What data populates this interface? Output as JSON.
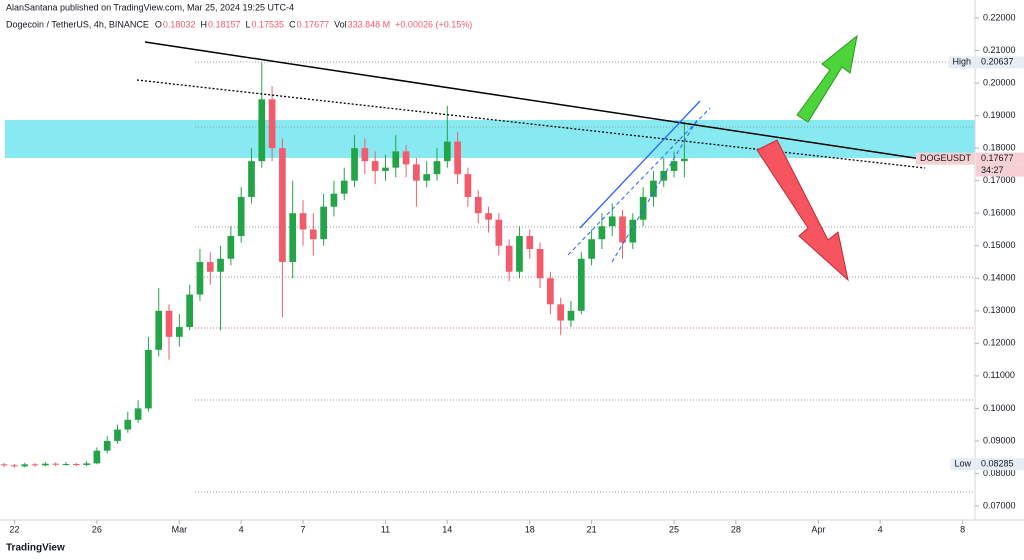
{
  "header": {
    "published": "AlanSantana published on TradingView.com, Mar 25, 2024 19:25 UTC-4",
    "footer": "TradingView"
  },
  "legend": {
    "symbol": "Dogecoin / TetherUS, 4h, BINANCE",
    "items": [
      {
        "label": "O",
        "value": "0.18032"
      },
      {
        "label": "H",
        "value": "0.18157"
      },
      {
        "label": "L",
        "value": "0.17535"
      },
      {
        "label": "C",
        "value": "0.17677"
      },
      {
        "label": "Vol",
        "value": "333.848 M"
      }
    ],
    "change": "+0.00026 (+0.15%)"
  },
  "chart_data": {
    "type": "candlestick",
    "up_color": "#22a447",
    "down_color": "#f15b6c",
    "x": [
      -0.5,
      0,
      0.5,
      1,
      1.5,
      2,
      2.5,
      3,
      3.5,
      4,
      4.5,
      5,
      5.5,
      6,
      6.5,
      7,
      7.5,
      8,
      8.5,
      9,
      9.5,
      10,
      10.5,
      11,
      11.5,
      12,
      12.5,
      13,
      13.5,
      14,
      14.5,
      15,
      15.5,
      16,
      16.5,
      17,
      17.5,
      18,
      18.5,
      19,
      19.5,
      20,
      20.5,
      21,
      21.5,
      22,
      22.5,
      23,
      23.5,
      24,
      24.5,
      25,
      25.5,
      26,
      26.5,
      27,
      27.5,
      28,
      28.5,
      29,
      29.5,
      30,
      30.5,
      31,
      31.5,
      32,
      32.5
    ],
    "open": [
      0.0828,
      0.0825,
      0.0822,
      0.0828,
      0.0825,
      0.083,
      0.0827,
      0.0829,
      0.0826,
      0.0831,
      0.087,
      0.09,
      0.0935,
      0.0965,
      0.1,
      0.118,
      0.13,
      0.122,
      0.125,
      0.135,
      0.145,
      0.142,
      0.146,
      0.153,
      0.165,
      0.176,
      0.195,
      0.18,
      0.145,
      0.16,
      0.155,
      0.152,
      0.162,
      0.166,
      0.17,
      0.18,
      0.176,
      0.173,
      0.174,
      0.179,
      0.175,
      0.17,
      0.172,
      0.176,
      0.182,
      0.172,
      0.165,
      0.16,
      0.158,
      0.15,
      0.142,
      0.153,
      0.149,
      0.14,
      0.132,
      0.127,
      0.13,
      0.146,
      0.152,
      0.156,
      0.159,
      0.151,
      0.158,
      0.165,
      0.17,
      0.173,
      0.176
    ],
    "high": [
      0.0832,
      0.0829,
      0.0833,
      0.0832,
      0.0836,
      0.0834,
      0.0835,
      0.0833,
      0.0838,
      0.088,
      0.0915,
      0.095,
      0.099,
      0.1025,
      0.122,
      0.137,
      0.132,
      0.129,
      0.138,
      0.149,
      0.148,
      0.15,
      0.156,
      0.168,
      0.18,
      0.2064,
      0.199,
      0.183,
      0.17,
      0.164,
      0.16,
      0.166,
      0.17,
      0.174,
      0.184,
      0.183,
      0.179,
      0.178,
      0.184,
      0.181,
      0.177,
      0.176,
      0.18,
      0.193,
      0.185,
      0.174,
      0.167,
      0.162,
      0.16,
      0.152,
      0.156,
      0.155,
      0.151,
      0.142,
      0.134,
      0.133,
      0.148,
      0.155,
      0.16,
      0.163,
      0.161,
      0.16,
      0.168,
      0.173,
      0.177,
      0.179,
      0.188
    ],
    "low": [
      0.082,
      0.0818,
      0.0819,
      0.0821,
      0.0822,
      0.0823,
      0.0824,
      0.0822,
      0.0823,
      0.0828,
      0.0862,
      0.0892,
      0.0925,
      0.0955,
      0.099,
      0.116,
      0.115,
      0.119,
      0.124,
      0.133,
      0.138,
      0.124,
      0.144,
      0.151,
      0.163,
      0.174,
      0.176,
      0.128,
      0.14,
      0.15,
      0.147,
      0.15,
      0.159,
      0.164,
      0.168,
      0.172,
      0.169,
      0.17,
      0.171,
      0.171,
      0.162,
      0.168,
      0.17,
      0.174,
      0.169,
      0.162,
      0.157,
      0.154,
      0.147,
      0.139,
      0.14,
      0.146,
      0.137,
      0.129,
      0.1225,
      0.125,
      0.129,
      0.144,
      0.149,
      0.153,
      0.146,
      0.149,
      0.156,
      0.162,
      0.168,
      0.171,
      0.171
    ],
    "close": [
      0.0825,
      0.0822,
      0.0828,
      0.0825,
      0.083,
      0.0827,
      0.0829,
      0.0826,
      0.0831,
      0.087,
      0.09,
      0.0935,
      0.0965,
      0.1,
      0.118,
      0.13,
      0.122,
      0.125,
      0.135,
      0.145,
      0.142,
      0.146,
      0.153,
      0.165,
      0.176,
      0.195,
      0.18,
      0.145,
      0.16,
      0.155,
      0.152,
      0.162,
      0.166,
      0.17,
      0.18,
      0.176,
      0.173,
      0.174,
      0.179,
      0.175,
      0.17,
      0.172,
      0.176,
      0.182,
      0.172,
      0.165,
      0.16,
      0.158,
      0.15,
      0.142,
      0.153,
      0.149,
      0.14,
      0.132,
      0.127,
      0.13,
      0.146,
      0.152,
      0.156,
      0.159,
      0.151,
      0.158,
      0.165,
      0.17,
      0.173,
      0.176,
      0.17677
    ],
    "xlim": [
      -0.7,
      46.6
    ],
    "xticks": [
      {
        "value": 0,
        "label": "22"
      },
      {
        "value": 4,
        "label": "26"
      },
      {
        "value": 8,
        "label": "Mar"
      },
      {
        "value": 11,
        "label": "4"
      },
      {
        "value": 14,
        "label": "7"
      },
      {
        "value": 18,
        "label": "11"
      },
      {
        "value": 21,
        "label": "14"
      },
      {
        "value": 25,
        "label": "18"
      },
      {
        "value": 28,
        "label": "21"
      },
      {
        "value": 32,
        "label": "25"
      },
      {
        "value": 35,
        "label": "28"
      },
      {
        "value": 39,
        "label": "Apr"
      },
      {
        "value": 42,
        "label": "4"
      },
      {
        "value": 46,
        "label": "8"
      }
    ],
    "ylim": [
      0.07,
      0.22
    ],
    "yticks": [
      {
        "value": 0.07,
        "label": "0.07000"
      },
      {
        "value": 0.08,
        "label": "0.08000"
      },
      {
        "value": 0.09,
        "label": "0.09000"
      },
      {
        "value": 0.1,
        "label": "0.10000"
      },
      {
        "value": 0.11,
        "label": "0.11000"
      },
      {
        "value": 0.12,
        "label": "0.12000"
      },
      {
        "value": 0.13,
        "label": "0.13000"
      },
      {
        "value": 0.14,
        "label": "0.14000"
      },
      {
        "value": 0.15,
        "label": "0.15000"
      },
      {
        "value": 0.16,
        "label": "0.16000"
      },
      {
        "value": 0.17,
        "label": "0.17000"
      },
      {
        "value": 0.18,
        "label": "0.18000"
      },
      {
        "value": 0.19,
        "label": "0.19000"
      },
      {
        "value": 0.2,
        "label": "0.20000"
      },
      {
        "value": 0.21,
        "label": "0.21000"
      },
      {
        "value": 0.22,
        "label": "0.22000"
      }
    ],
    "price_labels": [
      {
        "label": "High",
        "value": 0.20637,
        "color": "#e8edf5"
      },
      {
        "label": "Low",
        "value": 0.08285,
        "color": "#e8edf5"
      },
      {
        "label": "DOGEUSDT",
        "value": 0.17677,
        "color": "#f7d0d3",
        "countdown": "34:27"
      }
    ]
  }
}
